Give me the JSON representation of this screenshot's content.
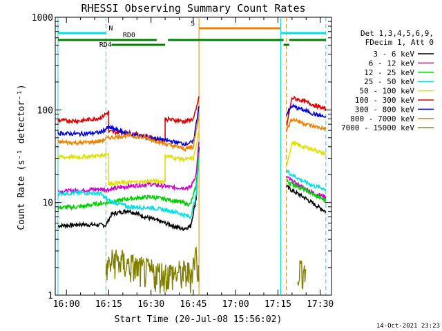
{
  "chart_data": {
    "type": "line",
    "title": "RHESSI Observing Summary Count Rates",
    "xlabel": "Start Time (20-Jul-08 15:56:02)",
    "ylabel": "Count Rate (s⁻¹ detector⁻¹)",
    "y_scale": "log",
    "ylim": [
      1,
      1000
    ],
    "xlim": [
      "15:56:02",
      "17:34:00"
    ],
    "x_ticks": [
      "16:00",
      "16:15",
      "16:30",
      "16:45",
      "17:00",
      "17:15",
      "17:30"
    ],
    "y_ticks": [
      1,
      10,
      100,
      1000
    ],
    "legend_header": [
      "Det 1,3,4,5,6,9,",
      "FDecim 1, Att 0"
    ],
    "timestamp": "14-Oct-2021 23:23",
    "series": [
      {
        "name": "3 - 6 keV",
        "color": "#000000",
        "points": [
          [
            "15:57",
            5.6
          ],
          [
            "16:05",
            5.8
          ],
          [
            "16:14",
            5.7
          ],
          [
            "16:16",
            7.5
          ],
          [
            "16:22",
            8.2
          ],
          [
            "16:28",
            7.0
          ],
          [
            "16:35",
            6.0
          ],
          [
            "16:41",
            5.2
          ],
          [
            "16:44",
            5.5
          ],
          [
            "16:46",
            11
          ],
          [
            "16:47",
            40
          ],
          null,
          [
            "17:18",
            15
          ],
          [
            "17:20",
            13.5
          ],
          [
            "17:24",
            11.5
          ],
          [
            "17:28",
            9.5
          ],
          [
            "17:32",
            8.0
          ]
        ]
      },
      {
        "name": "6 - 12 keV",
        "color": "#d000d0",
        "points": [
          [
            "15:57",
            13.2
          ],
          [
            "16:05",
            13.5
          ],
          [
            "16:12",
            14.0
          ],
          [
            "16:15",
            13.8
          ],
          [
            "16:22",
            15.0
          ],
          [
            "16:30",
            15.8
          ],
          [
            "16:38",
            14.5
          ],
          [
            "16:44",
            14.5
          ],
          [
            "16:46",
            20
          ],
          [
            "16:47",
            45
          ],
          null,
          [
            "17:18",
            19
          ],
          [
            "17:20",
            17
          ],
          [
            "17:24",
            14.5
          ],
          [
            "17:28",
            12.5
          ],
          [
            "17:32",
            11.5
          ]
        ]
      },
      {
        "name": "12 - 25 keV",
        "color": "#00d000",
        "points": [
          [
            "15:57",
            8.8
          ],
          [
            "16:05",
            9.0
          ],
          [
            "16:12",
            9.8
          ],
          [
            "16:15",
            10
          ],
          [
            "16:22",
            11
          ],
          [
            "16:30",
            11.5
          ],
          [
            "16:38",
            10.5
          ],
          [
            "16:44",
            9.5
          ],
          [
            "16:46",
            15
          ],
          [
            "16:47",
            35
          ],
          null,
          [
            "17:18",
            17
          ],
          [
            "17:20",
            16
          ],
          [
            "17:24",
            14
          ],
          [
            "17:28",
            12
          ],
          [
            "17:32",
            10.5
          ]
        ]
      },
      {
        "name": "25 - 50 keV",
        "color": "#00e0e0",
        "points": [
          [
            "15:57",
            12.5
          ],
          [
            "16:05",
            12.8
          ],
          [
            "16:12",
            12.5
          ],
          [
            "16:15",
            10.5
          ],
          [
            "16:22",
            9.0
          ],
          [
            "16:30",
            8.8
          ],
          [
            "16:38",
            8.0
          ],
          [
            "16:44",
            7.0
          ],
          [
            "16:46",
            12
          ],
          [
            "16:47",
            30
          ],
          null,
          [
            "17:18",
            22
          ],
          [
            "17:20",
            20
          ],
          [
            "17:24",
            17
          ],
          [
            "17:28",
            15
          ],
          [
            "17:32",
            14
          ]
        ]
      },
      {
        "name": "50 - 100 keV",
        "color": "#e0e000",
        "points": [
          [
            "15:57",
            31
          ],
          [
            "16:05",
            31
          ],
          [
            "16:12",
            32
          ],
          [
            "16:15",
            34
          ],
          [
            "16:15",
            16
          ],
          [
            "16:22",
            16.5
          ],
          [
            "16:30",
            17
          ],
          [
            "16:35",
            17
          ],
          [
            "16:35",
            32
          ],
          [
            "16:42",
            29
          ],
          [
            "16:45",
            30
          ],
          [
            "16:46",
            40
          ],
          [
            "16:47",
            60
          ],
          null,
          [
            "17:18",
            25
          ],
          [
            "17:20",
            44
          ],
          [
            "17:24",
            40
          ],
          [
            "17:28",
            37
          ],
          [
            "17:32",
            33
          ]
        ]
      },
      {
        "name": "100 - 300 keV",
        "color": "#e00000",
        "points": [
          [
            "15:57",
            77
          ],
          [
            "16:05",
            76
          ],
          [
            "16:12",
            82
          ],
          [
            "16:15",
            95
          ],
          [
            "16:15",
            58
          ],
          [
            "16:22",
            57
          ],
          [
            "16:28",
            52
          ],
          [
            "16:35",
            46
          ],
          [
            "16:35",
            80
          ],
          [
            "16:42",
            75
          ],
          [
            "16:45",
            80
          ],
          [
            "16:46",
            100
          ],
          [
            "16:47",
            140
          ],
          null,
          [
            "17:18",
            65
          ],
          [
            "17:20",
            135
          ],
          [
            "17:24",
            125
          ],
          [
            "17:28",
            112
          ],
          [
            "17:32",
            102
          ]
        ]
      },
      {
        "name": "300 - 800 keV",
        "color": "#0000e0",
        "points": [
          [
            "15:57",
            56
          ],
          [
            "16:05",
            55
          ],
          [
            "16:12",
            57
          ],
          [
            "16:15",
            65
          ],
          [
            "16:22",
            55
          ],
          [
            "16:28",
            51
          ],
          [
            "16:35",
            47
          ],
          [
            "16:42",
            43
          ],
          [
            "16:45",
            45
          ],
          [
            "16:46",
            70
          ],
          [
            "16:47",
            110
          ],
          null,
          [
            "17:18",
            90
          ],
          [
            "17:20",
            110
          ],
          [
            "17:24",
            100
          ],
          [
            "17:28",
            90
          ],
          [
            "17:32",
            83
          ]
        ]
      },
      {
        "name": "800 - 7000 keV",
        "color": "#f08000",
        "points": [
          [
            "15:57",
            45
          ],
          [
            "16:05",
            44
          ],
          [
            "16:12",
            46
          ],
          [
            "16:15",
            50
          ],
          [
            "16:22",
            53
          ],
          [
            "16:28",
            50
          ],
          [
            "16:35",
            43
          ],
          [
            "16:42",
            38
          ],
          [
            "16:45",
            40
          ],
          [
            "16:46",
            60
          ],
          [
            "16:47",
            90
          ],
          null,
          [
            "17:18",
            60
          ],
          [
            "17:20",
            80
          ],
          [
            "17:24",
            72
          ],
          [
            "17:28",
            66
          ],
          [
            "17:32",
            62
          ]
        ]
      },
      {
        "name": "7000 - 15000 keV",
        "color": "#808000",
        "style": "spiky",
        "points": [
          [
            "16:14",
            1.9
          ],
          [
            "16:17",
            2.4
          ],
          [
            "16:28",
            1.8
          ],
          [
            "16:34",
            1.7
          ],
          [
            "16:44",
            1.7
          ],
          [
            "16:46",
            2.8
          ],
          [
            "16:47",
            1.4
          ],
          null,
          [
            "17:22",
            1.9
          ],
          [
            "17:25",
            1.9
          ]
        ]
      }
    ],
    "night_intervals": [
      [
        "15:57",
        "16:14"
      ],
      [
        "17:16",
        "17:32"
      ]
    ],
    "saa_intervals": [
      [
        "16:47",
        "17:18"
      ]
    ],
    "bars": [
      {
        "label": "N",
        "color": "#00e0e0",
        "segments": [
          [
            "15:57",
            "16:14"
          ],
          [
            "17:16",
            "17:32"
          ]
        ]
      },
      {
        "label": "S",
        "color": "#f08000",
        "segments": [
          [
            "16:47",
            "17:16"
          ]
        ]
      },
      {
        "label": "RD0",
        "color": "#008000",
        "segments": [
          [
            "15:57",
            "16:32"
          ],
          [
            "16:36",
            "17:17"
          ],
          [
            "17:19",
            "17:32"
          ]
        ]
      },
      {
        "label": "RD4",
        "color": "#008000",
        "segments": [
          [
            "16:16",
            "16:35"
          ],
          [
            "17:17",
            "17:19"
          ]
        ]
      }
    ]
  }
}
